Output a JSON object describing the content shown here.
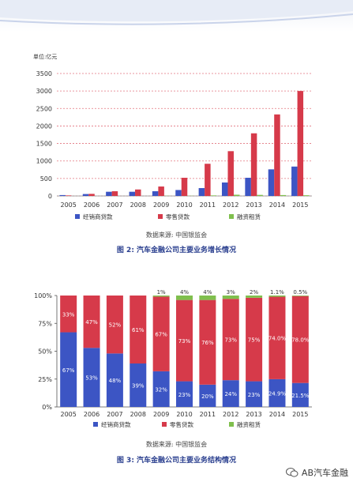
{
  "chart_data": [
    {
      "type": "bar",
      "ylabel": "单位:亿元",
      "ylim": [
        0,
        3500
      ],
      "yticks": [
        0,
        500,
        1000,
        1500,
        2000,
        2500,
        3000,
        3500
      ],
      "grid": true,
      "categories": [
        "2005",
        "2006",
        "2007",
        "2008",
        "2009",
        "2010",
        "2011",
        "2012",
        "2013",
        "2014",
        "2015"
      ],
      "series": [
        {
          "name": "经销商贷款",
          "color": "#3c55c4",
          "values": [
            25,
            55,
            120,
            120,
            135,
            170,
            225,
            385,
            520,
            760,
            840
          ]
        },
        {
          "name": "零售贷款",
          "color": "#d63a4a",
          "values": [
            15,
            60,
            135,
            185,
            270,
            520,
            920,
            1280,
            1790,
            2330,
            3000
          ]
        },
        {
          "name": "融资租赁",
          "color": "#7fbf4d",
          "values": [
            0,
            0,
            0,
            0,
            5,
            5,
            15,
            35,
            30,
            25,
            20
          ]
        }
      ],
      "legend_position": "bottom"
    },
    {
      "type": "bar",
      "stacked": true,
      "ylim": [
        0,
        100
      ],
      "yticks": [
        "0%",
        "25%",
        "50%",
        "75%",
        "100%"
      ],
      "categories": [
        "2005",
        "2006",
        "2007",
        "2008",
        "2009",
        "2010",
        "2011",
        "2012",
        "2013",
        "2014",
        "2015"
      ],
      "series": [
        {
          "name": "经销商贷款",
          "color": "#3c55c4",
          "values": [
            67,
            53,
            48,
            39,
            32,
            23,
            20,
            24,
            23,
            24.9,
            21.5
          ],
          "labels": [
            "67%",
            "53%",
            "48%",
            "39%",
            "32%",
            "23%",
            "20%",
            "24%",
            "23%",
            "24.9%",
            "21.5%"
          ]
        },
        {
          "name": "零售贷款",
          "color": "#d63a4a",
          "values": [
            33,
            47,
            52,
            61,
            67,
            73,
            76,
            73,
            75,
            74,
            78
          ],
          "labels": [
            "33%",
            "47%",
            "52%",
            "61%",
            "67%",
            "73%",
            "76%",
            "73%",
            "75%",
            "74.0%",
            "78.0%"
          ]
        },
        {
          "name": "融资租赁",
          "color": "#7fbf4d",
          "values": [
            0,
            0,
            0,
            0,
            1,
            4,
            4,
            3,
            2,
            1.1,
            0.5
          ],
          "labels": [
            "",
            "",
            "",
            "",
            "1%",
            "4%",
            "4%",
            "3%",
            "2%",
            "1.1%",
            "0.5%"
          ]
        }
      ],
      "legend_position": "bottom"
    }
  ],
  "figure1": {
    "source": "数据来源: 中国银监会",
    "caption": "图 2: 汽车金融公司主要业务增长情况"
  },
  "figure2": {
    "source": "数据来源: 中国银监会",
    "caption": "图 3: 汽车金融公司主要业务结构情况"
  },
  "watermark": {
    "text": "AB汽车金融",
    "icon": "wechat-logo-icon"
  }
}
